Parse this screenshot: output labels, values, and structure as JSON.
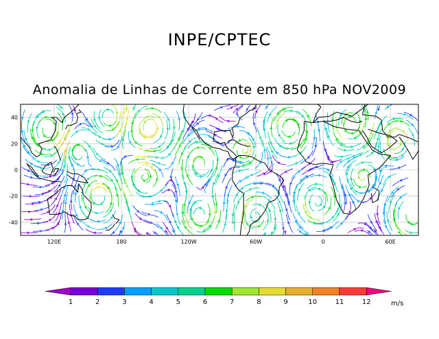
{
  "header": {
    "title": "INPE/CPTEC",
    "subtitle": "Anomalia de Linhas de Corrente em 850 hPa NOV2009"
  },
  "map": {
    "lat_ticks": [
      "40",
      "20",
      "0",
      "-20",
      "-40"
    ],
    "lon_ticks": [
      "120E",
      "180",
      "120W",
      "60W",
      "0",
      "60E"
    ],
    "lat_values": [
      40,
      20,
      0,
      -20,
      -40
    ],
    "lon_values": [
      120,
      180,
      240,
      300,
      360,
      420
    ],
    "lon_range": [
      90,
      445
    ],
    "lat_range": [
      -50,
      50
    ]
  },
  "colorbar": {
    "labels": [
      "1",
      "2",
      "3",
      "4",
      "5",
      "6",
      "7",
      "8",
      "9",
      "10",
      "11",
      "12"
    ],
    "unit": "m/s",
    "colors": [
      "#a000c8",
      "#7800dc",
      "#1e3cff",
      "#00a0ff",
      "#00c8c8",
      "#00d28c",
      "#00dc00",
      "#a0e632",
      "#e6dc32",
      "#e6af2d",
      "#f08228",
      "#fa3c3c",
      "#f00082"
    ]
  }
}
